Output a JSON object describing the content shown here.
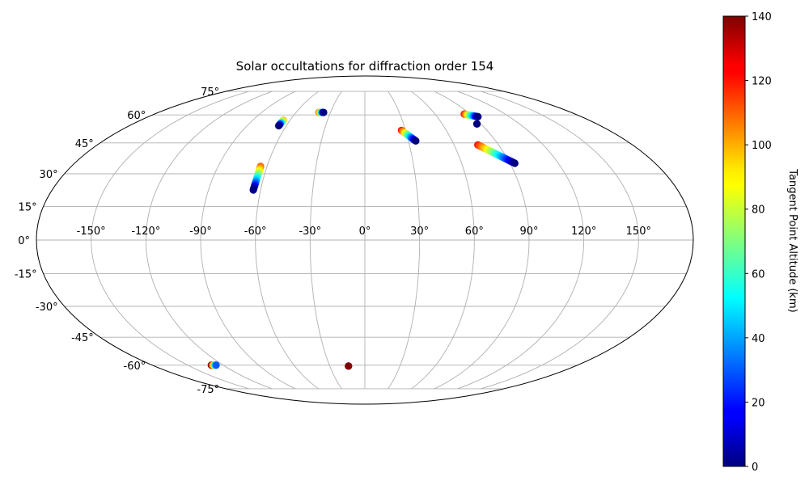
{
  "chart_data": {
    "type": "scatter",
    "projection": "mollweide",
    "title": "Solar occultations for diffraction order 154",
    "lon_ticks": [
      -150,
      -120,
      -90,
      -60,
      -30,
      0,
      30,
      60,
      90,
      120,
      150
    ],
    "lon_labels": [
      "-150°",
      "-120°",
      "-90°",
      "-60°",
      "-30°",
      "0°",
      "30°",
      "60°",
      "90°",
      "120°",
      "150°"
    ],
    "lat_ticks": [
      75,
      60,
      45,
      30,
      15,
      0,
      -15,
      -30,
      -45,
      -60,
      -75
    ],
    "lat_labels": [
      "75°",
      "60°",
      "45°",
      "30°",
      "15°",
      "0°",
      "-15°",
      "-30°",
      "-45°",
      "-60°",
      "-75°"
    ],
    "grid": true,
    "colorbar": {
      "label": "Tangent Point Altitude (km)",
      "colormap": "jet",
      "range": [
        0,
        140
      ],
      "ticks": [
        0,
        20,
        40,
        60,
        80,
        100,
        120,
        140
      ],
      "tick_labels": [
        "0",
        "20",
        "40",
        "60",
        "80",
        "100",
        "120",
        "140"
      ]
    },
    "tracks": [
      {
        "start": [
          -65.5,
          57.0
        ],
        "end": [
          -65.8,
          54.0
        ],
        "alt_range": [
          100,
          0
        ]
      },
      {
        "start": [
          -40.0,
          61.5
        ],
        "end": [
          -36.0,
          61.5
        ],
        "alt_range": [
          110,
          0
        ]
      },
      {
        "start": [
          -64.0,
          33.5
        ],
        "end": [
          -64.2,
          22.5
        ],
        "alt_range": [
          110,
          0
        ]
      },
      {
        "start": [
          27.0,
          51.5
        ],
        "end": [
          35.0,
          46.0
        ],
        "alt_range": [
          120,
          0
        ]
      },
      {
        "start": [
          85.0,
          60.5
        ],
        "end": [
          94.0,
          59.0
        ],
        "alt_range": [
          120,
          0
        ]
      },
      {
        "start": [
          87.0,
          55.0
        ],
        "end": [
          87.0,
          55.0
        ],
        "alt_range": [
          0,
          0
        ]
      },
      {
        "start": [
          76.0,
          44.0
        ],
        "end": [
          93.0,
          35.0
        ],
        "alt_range": [
          120,
          0
        ]
      },
      {
        "start": [
          -130.0,
          -60.0
        ],
        "end": [
          -126.0,
          -60.0
        ],
        "alt_range": [
          140,
          30
        ]
      },
      {
        "start": [
          -14.0,
          -60.5
        ],
        "end": [
          -14.0,
          -60.5
        ],
        "alt_range": [
          140,
          140
        ]
      }
    ]
  }
}
